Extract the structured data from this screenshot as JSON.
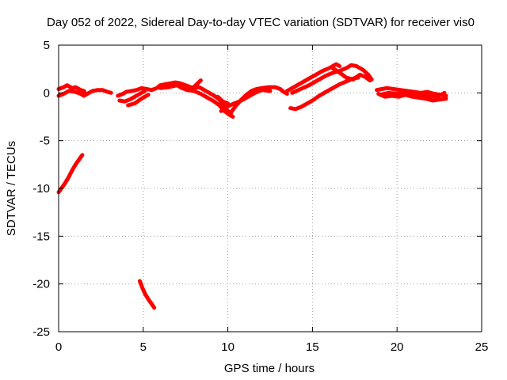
{
  "chart_data": {
    "type": "scatter",
    "title": "Day 052 of 2022, Sidereal Day-to-day VTEC variation (SDTVAR) for receiver vis0",
    "xlabel": "GPS time / hours",
    "ylabel": "SDTVAR / TECUs",
    "xlim": [
      0,
      25
    ],
    "ylim": [
      -25,
      5
    ],
    "xticks": [
      0,
      5,
      10,
      15,
      20,
      25
    ],
    "yticks": [
      5,
      0,
      -5,
      -10,
      -15,
      -20,
      -25
    ],
    "grid": true,
    "color": "#ff0000",
    "series": [
      {
        "name": "main-track-a",
        "points": [
          [
            0.0,
            0.4
          ],
          [
            0.3,
            0.6
          ],
          [
            0.5,
            0.8
          ],
          [
            0.8,
            0.5
          ],
          [
            1.0,
            0.6
          ],
          [
            1.3,
            0.3
          ],
          [
            1.5,
            0.2
          ],
          [
            1.6,
            -0.2
          ],
          [
            1.8,
            0.0
          ],
          [
            2.0,
            0.2
          ],
          [
            2.3,
            0.3
          ],
          [
            2.6,
            0.3
          ],
          [
            2.9,
            0.1
          ],
          [
            3.1,
            0.0
          ]
        ]
      },
      {
        "name": "main-track-b",
        "points": [
          [
            0.0,
            -0.3
          ],
          [
            0.3,
            -0.1
          ],
          [
            0.6,
            0.2
          ],
          [
            1.0,
            0.1
          ],
          [
            1.3,
            -0.1
          ],
          [
            1.5,
            -0.3
          ]
        ]
      },
      {
        "name": "mid-track-a",
        "points": [
          [
            3.5,
            -0.3
          ],
          [
            3.8,
            -0.1
          ],
          [
            4.0,
            0.1
          ],
          [
            4.3,
            0.2
          ],
          [
            4.6,
            0.3
          ],
          [
            4.9,
            0.5
          ],
          [
            5.2,
            0.4
          ],
          [
            5.5,
            0.3
          ]
        ]
      },
      {
        "name": "mid-track-b",
        "points": [
          [
            3.6,
            -0.8
          ],
          [
            3.9,
            -0.9
          ],
          [
            4.2,
            -0.7
          ],
          [
            4.5,
            -0.4
          ],
          [
            4.8,
            -0.1
          ],
          [
            5.1,
            0.2
          ]
        ]
      },
      {
        "name": "mid-track-c",
        "points": [
          [
            4.1,
            -1.3
          ],
          [
            4.5,
            -1.1
          ],
          [
            4.9,
            -0.6
          ],
          [
            5.3,
            -0.2
          ]
        ]
      },
      {
        "name": "central-track-a",
        "points": [
          [
            5.5,
            0.3
          ],
          [
            5.8,
            0.5
          ],
          [
            6.0,
            0.8
          ],
          [
            6.3,
            0.9
          ],
          [
            6.6,
            1.0
          ],
          [
            6.9,
            1.1
          ],
          [
            7.2,
            1.0
          ],
          [
            7.5,
            0.8
          ],
          [
            7.8,
            0.6
          ],
          [
            8.0,
            0.5
          ],
          [
            8.3,
            0.6
          ],
          [
            8.6,
            0.3
          ],
          [
            8.9,
            0.0
          ],
          [
            9.2,
            -0.3
          ],
          [
            9.5,
            -0.7
          ],
          [
            9.8,
            -1.4
          ],
          [
            10.0,
            -1.9
          ],
          [
            10.2,
            -2.1
          ]
        ]
      },
      {
        "name": "central-track-b",
        "points": [
          [
            6.0,
            0.5
          ],
          [
            6.5,
            0.6
          ],
          [
            7.0,
            0.8
          ],
          [
            7.3,
            0.5
          ],
          [
            7.6,
            0.3
          ],
          [
            8.0,
            0.2
          ],
          [
            8.4,
            -0.1
          ],
          [
            8.8,
            -0.5
          ],
          [
            9.2,
            -0.9
          ],
          [
            9.5,
            -1.3
          ],
          [
            9.8,
            -1.9
          ],
          [
            10.1,
            -2.3
          ],
          [
            10.3,
            -2.5
          ]
        ]
      },
      {
        "name": "central-track-c",
        "points": [
          [
            7.8,
            0.3
          ],
          [
            8.1,
            0.8
          ],
          [
            8.4,
            1.3
          ]
        ]
      },
      {
        "name": "recovery-track-a",
        "points": [
          [
            10.2,
            -2.0
          ],
          [
            10.5,
            -1.3
          ],
          [
            10.8,
            -0.7
          ],
          [
            11.1,
            -0.2
          ],
          [
            11.4,
            0.2
          ],
          [
            11.7,
            0.4
          ],
          [
            12.0,
            0.5
          ],
          [
            12.4,
            0.6
          ],
          [
            12.8,
            0.6
          ],
          [
            13.1,
            0.4
          ],
          [
            13.3,
            0.1
          ],
          [
            13.5,
            -0.1
          ]
        ]
      },
      {
        "name": "recovery-track-b",
        "points": [
          [
            9.6,
            -1.9
          ],
          [
            10.0,
            -1.4
          ],
          [
            10.4,
            -1.1
          ],
          [
            10.8,
            -0.8
          ],
          [
            11.2,
            -0.4
          ],
          [
            11.6,
            0.0
          ],
          [
            12.0,
            0.3
          ],
          [
            12.5,
            0.2
          ]
        ]
      },
      {
        "name": "recovery-track-c",
        "points": [
          [
            9.4,
            -0.4
          ],
          [
            9.7,
            -0.9
          ],
          [
            10.0,
            -1.1
          ]
        ]
      },
      {
        "name": "rise-track-a",
        "points": [
          [
            13.5,
            0.2
          ],
          [
            13.8,
            0.5
          ],
          [
            14.1,
            0.8
          ],
          [
            14.4,
            1.1
          ],
          [
            14.8,
            1.5
          ],
          [
            15.2,
            1.9
          ],
          [
            15.6,
            2.3
          ],
          [
            16.0,
            2.6
          ],
          [
            16.4,
            3.0
          ],
          [
            16.6,
            2.8
          ]
        ]
      },
      {
        "name": "rise-track-b",
        "points": [
          [
            13.8,
            0.0
          ],
          [
            14.3,
            0.4
          ],
          [
            14.8,
            0.8
          ],
          [
            15.3,
            1.3
          ],
          [
            15.8,
            1.8
          ],
          [
            16.2,
            2.1
          ],
          [
            16.6,
            2.3
          ],
          [
            17.0,
            2.6
          ],
          [
            17.3,
            2.9
          ],
          [
            17.6,
            2.8
          ],
          [
            18.0,
            2.4
          ],
          [
            18.3,
            1.9
          ],
          [
            18.5,
            1.4
          ]
        ]
      },
      {
        "name": "rise-track-c",
        "points": [
          [
            16.2,
            2.6
          ],
          [
            16.7,
            2.0
          ],
          [
            17.0,
            1.6
          ],
          [
            17.4,
            1.4
          ],
          [
            17.8,
            1.9
          ],
          [
            18.1,
            1.7
          ],
          [
            18.4,
            1.3
          ]
        ]
      },
      {
        "name": "low-return-track",
        "points": [
          [
            13.7,
            -1.6
          ],
          [
            14.0,
            -1.7
          ],
          [
            14.3,
            -1.5
          ],
          [
            14.6,
            -1.2
          ],
          [
            15.0,
            -0.8
          ],
          [
            15.4,
            -0.3
          ],
          [
            15.8,
            0.1
          ],
          [
            16.2,
            0.5
          ],
          [
            16.6,
            0.9
          ],
          [
            17.0,
            1.2
          ],
          [
            17.4,
            1.5
          ],
          [
            17.7,
            1.6
          ]
        ]
      },
      {
        "name": "tail-track-a",
        "points": [
          [
            18.8,
            0.3
          ],
          [
            19.1,
            0.4
          ],
          [
            19.4,
            0.5
          ],
          [
            19.8,
            0.4
          ],
          [
            20.2,
            0.3
          ],
          [
            20.6,
            0.2
          ],
          [
            21.0,
            0.1
          ],
          [
            21.4,
            0.0
          ],
          [
            21.8,
            0.1
          ],
          [
            22.2,
            -0.1
          ],
          [
            22.6,
            -0.2
          ],
          [
            22.9,
            -0.3
          ]
        ]
      },
      {
        "name": "tail-track-b",
        "points": [
          [
            18.9,
            -0.1
          ],
          [
            19.3,
            -0.4
          ],
          [
            19.7,
            -0.3
          ],
          [
            20.1,
            -0.4
          ],
          [
            20.5,
            -0.2
          ],
          [
            20.9,
            -0.4
          ],
          [
            21.3,
            -0.5
          ],
          [
            21.7,
            -0.6
          ],
          [
            22.1,
            -0.8
          ],
          [
            22.5,
            -0.7
          ],
          [
            22.9,
            -0.6
          ]
        ]
      },
      {
        "name": "tail-track-c",
        "points": [
          [
            19.0,
            -0.2
          ],
          [
            19.5,
            0.0
          ],
          [
            20.0,
            -0.1
          ],
          [
            20.5,
            0.1
          ],
          [
            21.0,
            -0.1
          ],
          [
            21.5,
            -0.2
          ],
          [
            22.0,
            -0.4
          ],
          [
            22.5,
            -0.3
          ],
          [
            22.8,
            0.0
          ]
        ]
      },
      {
        "name": "early-drop-track",
        "points": [
          [
            0.0,
            -10.4
          ],
          [
            0.2,
            -9.9
          ],
          [
            0.4,
            -9.4
          ],
          [
            0.6,
            -8.8
          ],
          [
            0.8,
            -8.1
          ],
          [
            1.0,
            -7.5
          ],
          [
            1.2,
            -7.0
          ],
          [
            1.4,
            -6.5
          ]
        ]
      },
      {
        "name": "late-drop-track",
        "points": [
          [
            4.8,
            -19.7
          ],
          [
            4.95,
            -20.4
          ],
          [
            5.1,
            -21.0
          ],
          [
            5.3,
            -21.6
          ],
          [
            5.5,
            -22.1
          ],
          [
            5.65,
            -22.5
          ]
        ]
      }
    ]
  }
}
